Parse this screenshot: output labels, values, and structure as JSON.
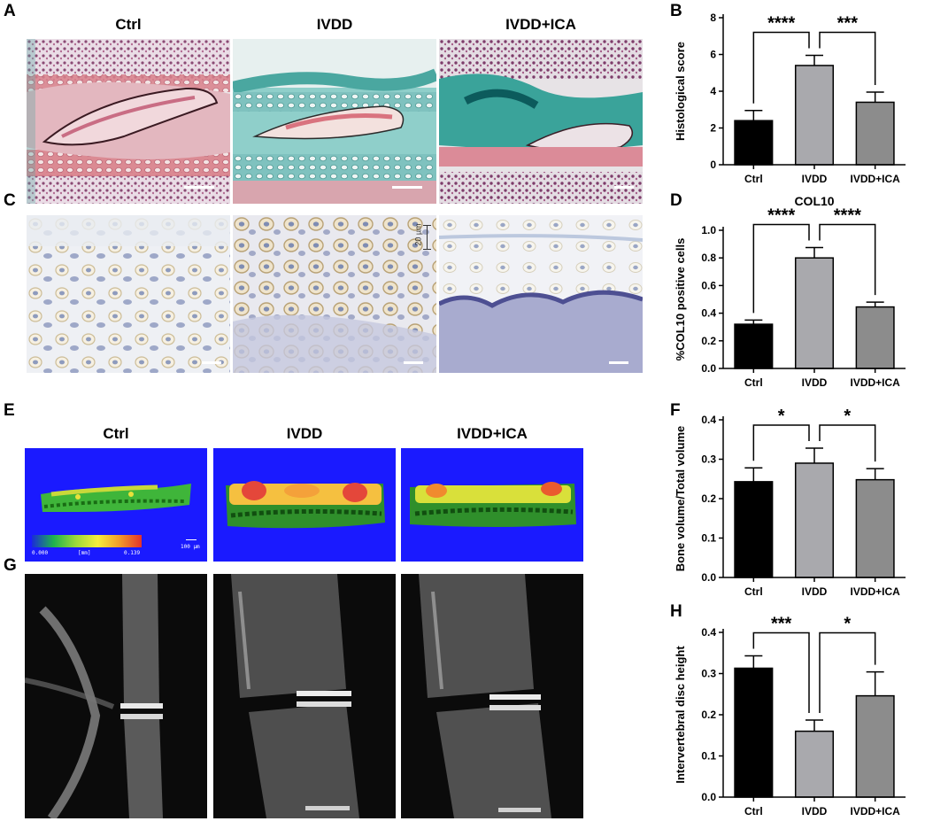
{
  "panel_labels": {
    "a": "A",
    "b": "B",
    "c": "C",
    "d": "D",
    "e": "E",
    "f": "F",
    "g": "G",
    "h": "H"
  },
  "panel_a": {
    "titles": [
      "Ctrl",
      "IVDD",
      "IVDD+ICA"
    ]
  },
  "panel_c": {
    "scale_label": "20 µm"
  },
  "panel_e": {
    "titles": [
      "Ctrl",
      "IVDD",
      "IVDD+ICA"
    ],
    "colorbar_min": "0.000",
    "colorbar_unit": "[mm]",
    "colorbar_max": "0.139",
    "scale_label": "100 µm",
    "background_color": "#1a1aff"
  },
  "colors": {
    "ctrl": "#000000",
    "ivdd": "#a9a9ad",
    "ivdd_ica": "#8c8c8c"
  },
  "chart_data": [
    {
      "id": "B",
      "type": "bar",
      "title": "",
      "categories": [
        "Ctrl",
        "IVDD",
        "IVDD+ICA"
      ],
      "values": [
        2.4,
        5.4,
        3.4
      ],
      "errors": [
        0.55,
        0.55,
        0.55
      ],
      "ylabel": "Histological score",
      "ylim": [
        0,
        8
      ],
      "yticks": [
        "0",
        "2",
        "4",
        "6",
        "8"
      ],
      "ytick_values": [
        0,
        2,
        4,
        6,
        8
      ],
      "significance": [
        {
          "from": 0,
          "to": 1,
          "label": "****"
        },
        {
          "from": 1,
          "to": 2,
          "label": "***"
        }
      ],
      "grid": false
    },
    {
      "id": "D",
      "type": "bar",
      "title": "COL10",
      "categories": [
        "Ctrl",
        "IVDD",
        "IVDD+ICA"
      ],
      "values": [
        0.32,
        0.8,
        0.445
      ],
      "errors": [
        0.03,
        0.075,
        0.035
      ],
      "ylabel": "%COL10 positive cells",
      "ylim": [
        0,
        1
      ],
      "yticks": [
        "0.0",
        "0.2",
        "0.4",
        "0.6",
        "0.8",
        "1.0"
      ],
      "ytick_values": [
        0,
        0.2,
        0.4,
        0.6,
        0.8,
        1.0
      ],
      "significance": [
        {
          "from": 0,
          "to": 1,
          "label": "****"
        },
        {
          "from": 1,
          "to": 2,
          "label": "****"
        }
      ],
      "grid": false
    },
    {
      "id": "F",
      "type": "bar",
      "title": "",
      "categories": [
        "Ctrl",
        "IVDD",
        "IVDD+ICA"
      ],
      "values": [
        0.243,
        0.29,
        0.248
      ],
      "errors": [
        0.035,
        0.038,
        0.028
      ],
      "ylabel": "Bone volume/Total volume",
      "ylim": [
        0,
        0.4
      ],
      "yticks": [
        "0.0",
        "0.1",
        "0.2",
        "0.3",
        "0.4"
      ],
      "ytick_values": [
        0,
        0.1,
        0.2,
        0.3,
        0.4
      ],
      "significance": [
        {
          "from": 0,
          "to": 1,
          "label": "*"
        },
        {
          "from": 1,
          "to": 2,
          "label": "*"
        }
      ],
      "grid": false
    },
    {
      "id": "H",
      "type": "bar",
      "title": "",
      "categories": [
        "Ctrl",
        "IVDD",
        "IVDD+ICA"
      ],
      "values": [
        0.313,
        0.16,
        0.246
      ],
      "errors": [
        0.03,
        0.027,
        0.058
      ],
      "ylabel": "Intervertebral disc height",
      "ylim": [
        0,
        0.4
      ],
      "yticks": [
        "0.0",
        "0.1",
        "0.2",
        "0.3",
        "0.4"
      ],
      "ytick_values": [
        0,
        0.1,
        0.2,
        0.3,
        0.4
      ],
      "significance": [
        {
          "from": 0,
          "to": 1,
          "label": "***"
        },
        {
          "from": 1,
          "to": 2,
          "label": "*"
        }
      ],
      "grid": false
    }
  ]
}
